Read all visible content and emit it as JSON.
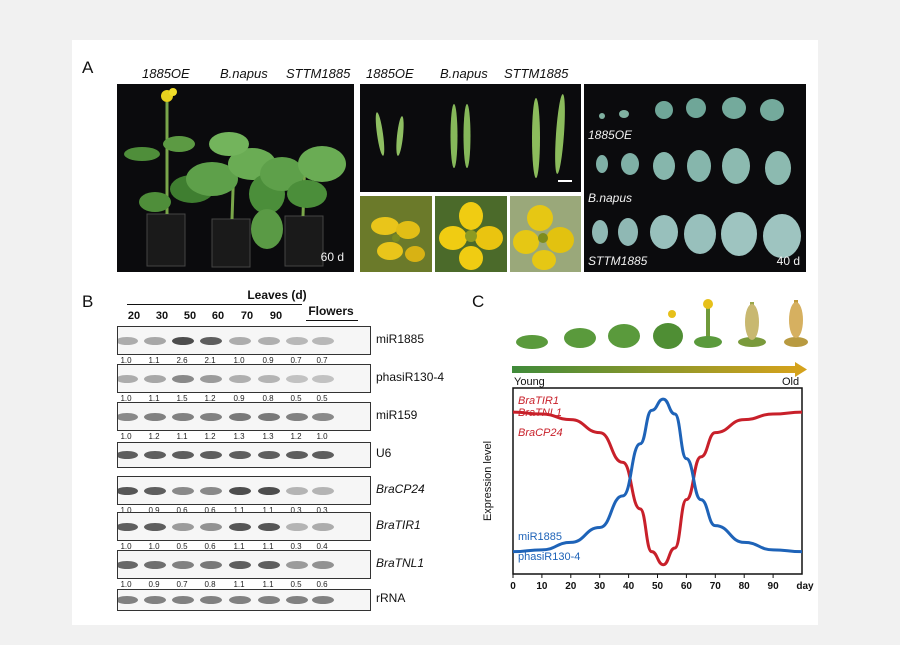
{
  "panels": {
    "a": "A",
    "b": "B",
    "c": "C"
  },
  "panel_a": {
    "plant_labels": [
      "1885OE",
      "B.napus",
      "STTM1885"
    ],
    "silique_labels": [
      "1885OE",
      "B.napus",
      "STTM1885"
    ],
    "day_plants": "60 d",
    "leaf_rows": [
      "1885OE",
      "B.napus",
      "STTM1885"
    ],
    "day_leaves": "40 d"
  },
  "panel_b": {
    "header_leaves": "Leaves (d)",
    "header_flowers": "Flowers",
    "columns": [
      "20",
      "30",
      "50",
      "60",
      "70",
      "90"
    ],
    "blots": [
      {
        "label": "miR1885",
        "italic": false,
        "values": [
          "1.0",
          "1.1",
          "2.6",
          "2.1",
          "1.0",
          "0.9",
          "0.7",
          "0.7"
        ]
      },
      {
        "label": "phasiR130-4",
        "italic": false,
        "values": [
          "1.0",
          "1.1",
          "1.5",
          "1.2",
          "0.9",
          "0.8",
          "0.5",
          "0.5"
        ]
      },
      {
        "label": "miR159",
        "italic": false,
        "values": [
          "1.0",
          "1.2",
          "1.1",
          "1.2",
          "1.3",
          "1.3",
          "1.2",
          "1.0"
        ]
      },
      {
        "label": "U6",
        "italic": false,
        "values": []
      },
      {
        "label": "BraCP24",
        "italic": true,
        "values": [
          "1.0",
          "0.9",
          "0.6",
          "0.6",
          "1.1",
          "1.1",
          "0.3",
          "0.3"
        ]
      },
      {
        "label": "BraTIR1",
        "italic": true,
        "values": [
          "1.0",
          "1.0",
          "0.5",
          "0.6",
          "1.1",
          "1.1",
          "0.3",
          "0.4"
        ]
      },
      {
        "label": "BraTNL1",
        "italic": true,
        "values": [
          "1.0",
          "0.9",
          "0.7",
          "0.8",
          "1.1",
          "1.1",
          "0.5",
          "0.6"
        ]
      },
      {
        "label": "rRNA",
        "italic": false,
        "values": []
      }
    ]
  },
  "panel_c": {
    "young": "Young",
    "old": "Old",
    "gradient_colors": [
      "#3f8a3a",
      "#d4a21c"
    ]
  },
  "chart_data": {
    "type": "line",
    "title": "",
    "xlabel": "day",
    "ylabel": "Expression level",
    "xlim": [
      0,
      100
    ],
    "xticks": [
      0,
      10,
      20,
      30,
      40,
      50,
      60,
      70,
      80,
      90
    ],
    "ylim": [
      0,
      1
    ],
    "series": [
      {
        "name": "BraTIR1 / BraTNL1 / BraCP24",
        "labels": [
          "BraTIR1",
          "BraTNL1",
          "BraCP24"
        ],
        "color": "#c8202a",
        "x": [
          0,
          10,
          20,
          30,
          38,
          44,
          48,
          52,
          56,
          60,
          65,
          70,
          80,
          90,
          100
        ],
        "y": [
          0.87,
          0.86,
          0.83,
          0.76,
          0.6,
          0.35,
          0.12,
          0.05,
          0.14,
          0.4,
          0.63,
          0.76,
          0.83,
          0.86,
          0.87
        ]
      },
      {
        "name": "miR1885 / phasiR130-4",
        "labels": [
          "miR1885",
          "phasiR130-4"
        ],
        "color": "#1e63b8",
        "x": [
          0,
          10,
          20,
          30,
          38,
          44,
          48,
          52,
          56,
          60,
          65,
          70,
          80,
          90,
          100
        ],
        "y": [
          0.12,
          0.13,
          0.17,
          0.25,
          0.42,
          0.7,
          0.88,
          0.94,
          0.86,
          0.62,
          0.4,
          0.26,
          0.17,
          0.13,
          0.12
        ]
      }
    ]
  }
}
